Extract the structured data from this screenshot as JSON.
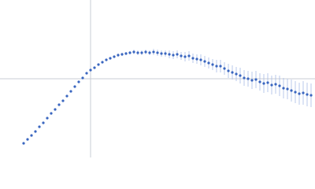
{
  "chart_data": {
    "type": "scatter",
    "color": "#3a66c0",
    "error_color": "#a9bde6",
    "xlim": [
      0,
      400
    ],
    "ylim": [
      0,
      200
    ],
    "reference_lines": {
      "x": 115,
      "y": 100,
      "color": "#c8ccd4"
    },
    "x": [
      30,
      35,
      40,
      45,
      50,
      55,
      60,
      65,
      70,
      75,
      80,
      85,
      90,
      95,
      100,
      105,
      110,
      115,
      120,
      125,
      130,
      135,
      140,
      145,
      150,
      155,
      160,
      165,
      170,
      175,
      180,
      185,
      190,
      195,
      200,
      205,
      210,
      215,
      220,
      225,
      230,
      235,
      240,
      245,
      250,
      255,
      260,
      265,
      270,
      275,
      280,
      285,
      290,
      295,
      300,
      305,
      310,
      315,
      320,
      325,
      330,
      335,
      340,
      345,
      350,
      355,
      360,
      365,
      370,
      375,
      380,
      385,
      390,
      395
    ],
    "values": [
      18,
      23,
      28,
      33,
      39,
      44,
      50,
      56,
      61,
      67,
      72,
      78,
      84,
      90,
      96,
      101,
      107,
      111,
      114,
      118,
      121,
      124,
      126,
      128,
      130,
      131,
      132,
      133,
      134,
      133,
      133,
      134,
      133,
      134,
      133,
      132,
      132,
      131,
      130,
      131,
      129,
      128,
      129,
      126,
      125,
      124,
      122,
      120,
      118,
      116,
      116,
      113,
      110,
      108,
      106,
      104,
      101,
      100,
      98,
      99,
      96,
      94,
      95,
      92,
      93,
      91,
      88,
      87,
      85,
      83,
      81,
      82,
      80,
      79
    ],
    "errors": [
      1,
      1,
      1,
      1,
      1,
      1,
      1,
      1,
      1,
      1,
      1,
      1,
      1,
      1,
      1,
      1,
      1,
      1,
      1,
      1,
      1,
      1,
      1,
      1,
      2,
      2,
      2,
      2,
      3,
      3,
      3,
      3,
      3,
      4,
      4,
      4,
      4,
      5,
      5,
      5,
      5,
      6,
      6,
      6,
      6,
      7,
      7,
      7,
      7,
      8,
      8,
      8,
      9,
      9,
      9,
      10,
      10,
      10,
      11,
      11,
      11,
      12,
      12,
      12,
      12,
      13,
      13,
      13,
      14,
      14,
      14,
      15,
      15,
      15
    ]
  }
}
